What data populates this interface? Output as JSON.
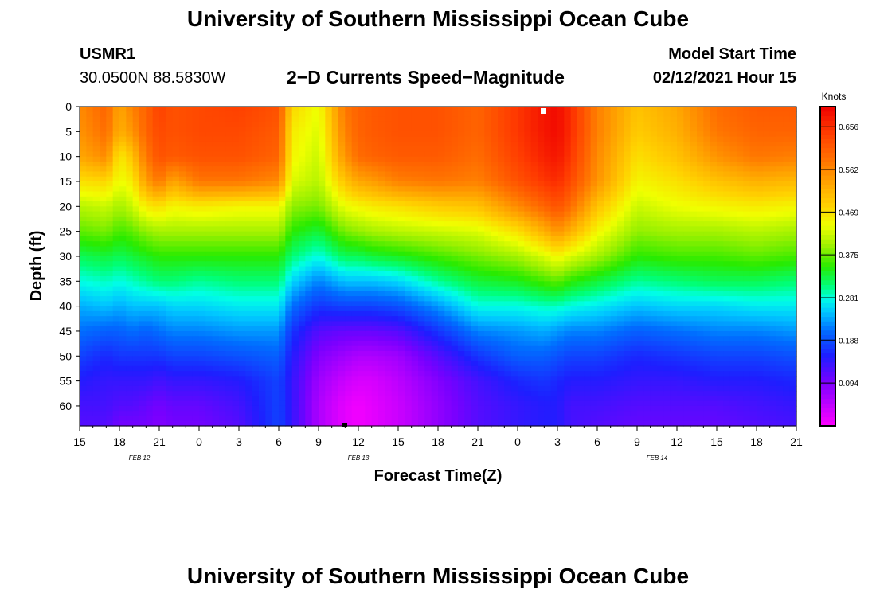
{
  "header": {
    "title_top": "University of Southern Mississippi Ocean Cube",
    "title_bottom": "University of Southern Mississippi Ocean Cube",
    "station_id": "USMR1",
    "coordinates": "30.0500N 88.5830W",
    "subtitle": "2−D Currents Speed−Magnitude",
    "model_start_label": "Model Start Time",
    "model_start_value": "02/12/2021 Hour 15"
  },
  "chart_data": {
    "type": "heatmap",
    "title": "2−D Currents Speed−Magnitude",
    "xlabel": "Forecast Time(Z)",
    "ylabel": "Depth (ft)",
    "x_ticks": [
      "15",
      "18",
      "21",
      "0",
      "3",
      "6",
      "9",
      "12",
      "15",
      "18",
      "21",
      "0",
      "3",
      "6",
      "9",
      "12",
      "15",
      "18",
      "21"
    ],
    "x_hours": [
      0,
      3,
      6,
      9,
      12,
      15,
      18,
      21,
      24,
      27,
      30,
      33,
      36,
      39,
      42,
      45,
      48,
      51,
      54
    ],
    "date_labels": [
      {
        "label": "FEB 12",
        "hour": 4.5
      },
      {
        "label": "FEB 13",
        "hour": 21
      },
      {
        "label": "FEB 14",
        "hour": 43.5
      }
    ],
    "y_ticks": [
      0,
      5,
      10,
      15,
      20,
      25,
      30,
      35,
      40,
      45,
      50,
      55,
      60
    ],
    "ylim": [
      0,
      64
    ],
    "xlim": [
      0,
      54
    ],
    "colorbar": {
      "label": "Knots",
      "ticks": [
        "0.656",
        "0.562",
        "0.469",
        "0.375",
        "0.281",
        "0.188",
        "0.094"
      ],
      "tick_values": [
        0.656,
        0.562,
        0.469,
        0.375,
        0.281,
        0.188,
        0.094
      ],
      "vmin": 0,
      "vmax": 0.7
    },
    "profile_hours": [
      0,
      2,
      3,
      4,
      5,
      6,
      7,
      9,
      12,
      15,
      16,
      18,
      20,
      21,
      22,
      24,
      27,
      30,
      33,
      35,
      36,
      37,
      39,
      42,
      45,
      48,
      51,
      54
    ],
    "profile_depths": [
      0,
      5,
      10,
      15,
      20,
      25,
      30,
      35,
      40,
      45,
      50,
      55,
      60,
      64
    ],
    "speeds": [
      [
        0.56,
        0.55,
        0.53,
        0.47,
        0.41,
        0.37,
        0.32,
        0.28,
        0.24,
        0.21,
        0.18,
        0.15,
        0.13,
        0.12
      ],
      [
        0.6,
        0.59,
        0.56,
        0.48,
        0.42,
        0.38,
        0.33,
        0.29,
        0.25,
        0.2,
        0.16,
        0.14,
        0.13,
        0.12
      ],
      [
        0.53,
        0.52,
        0.46,
        0.44,
        0.4,
        0.36,
        0.32,
        0.28,
        0.24,
        0.2,
        0.17,
        0.14,
        0.12,
        0.1
      ],
      [
        0.57,
        0.55,
        0.5,
        0.46,
        0.42,
        0.37,
        0.33,
        0.29,
        0.25,
        0.21,
        0.17,
        0.14,
        0.12,
        0.1
      ],
      [
        0.6,
        0.6,
        0.58,
        0.54,
        0.46,
        0.39,
        0.34,
        0.3,
        0.25,
        0.2,
        0.17,
        0.14,
        0.11,
        0.1
      ],
      [
        0.64,
        0.63,
        0.62,
        0.58,
        0.47,
        0.4,
        0.35,
        0.31,
        0.25,
        0.21,
        0.17,
        0.13,
        0.1,
        0.09
      ],
      [
        0.62,
        0.62,
        0.61,
        0.53,
        0.45,
        0.4,
        0.35,
        0.31,
        0.26,
        0.22,
        0.18,
        0.14,
        0.11,
        0.1
      ],
      [
        0.63,
        0.63,
        0.62,
        0.58,
        0.46,
        0.4,
        0.35,
        0.3,
        0.26,
        0.22,
        0.18,
        0.14,
        0.11,
        0.1
      ],
      [
        0.64,
        0.63,
        0.62,
        0.58,
        0.45,
        0.4,
        0.35,
        0.31,
        0.27,
        0.23,
        0.19,
        0.15,
        0.13,
        0.12
      ],
      [
        0.62,
        0.61,
        0.6,
        0.56,
        0.45,
        0.4,
        0.35,
        0.31,
        0.27,
        0.23,
        0.2,
        0.18,
        0.18,
        0.18
      ],
      [
        0.48,
        0.46,
        0.45,
        0.43,
        0.39,
        0.35,
        0.31,
        0.26,
        0.21,
        0.17,
        0.15,
        0.14,
        0.14,
        0.14
      ],
      [
        0.44,
        0.43,
        0.42,
        0.41,
        0.38,
        0.33,
        0.28,
        0.22,
        0.17,
        0.12,
        0.09,
        0.07,
        0.06,
        0.06
      ],
      [
        0.58,
        0.57,
        0.55,
        0.5,
        0.44,
        0.38,
        0.32,
        0.25,
        0.18,
        0.11,
        0.07,
        0.04,
        0.02,
        0.02
      ],
      [
        0.6,
        0.6,
        0.59,
        0.53,
        0.45,
        0.39,
        0.32,
        0.25,
        0.18,
        0.11,
        0.06,
        0.03,
        0.01,
        0.01
      ],
      [
        0.61,
        0.61,
        0.6,
        0.54,
        0.46,
        0.4,
        0.33,
        0.25,
        0.18,
        0.11,
        0.06,
        0.03,
        0.02,
        0.02
      ],
      [
        0.62,
        0.62,
        0.61,
        0.57,
        0.47,
        0.41,
        0.34,
        0.26,
        0.19,
        0.12,
        0.07,
        0.05,
        0.04,
        0.04
      ],
      [
        0.62,
        0.62,
        0.61,
        0.58,
        0.49,
        0.42,
        0.36,
        0.3,
        0.23,
        0.17,
        0.12,
        0.09,
        0.08,
        0.08
      ],
      [
        0.6,
        0.6,
        0.59,
        0.57,
        0.5,
        0.43,
        0.38,
        0.33,
        0.28,
        0.22,
        0.17,
        0.13,
        0.12,
        0.12
      ],
      [
        0.65,
        0.65,
        0.64,
        0.62,
        0.56,
        0.47,
        0.4,
        0.34,
        0.28,
        0.23,
        0.2,
        0.16,
        0.14,
        0.14
      ],
      [
        0.68,
        0.68,
        0.67,
        0.65,
        0.6,
        0.52,
        0.43,
        0.36,
        0.29,
        0.24,
        0.2,
        0.17,
        0.15,
        0.15
      ],
      [
        0.69,
        0.69,
        0.68,
        0.66,
        0.62,
        0.55,
        0.45,
        0.37,
        0.29,
        0.23,
        0.19,
        0.16,
        0.15,
        0.15
      ],
      [
        0.66,
        0.66,
        0.65,
        0.63,
        0.59,
        0.52,
        0.43,
        0.35,
        0.28,
        0.22,
        0.18,
        0.15,
        0.13,
        0.13
      ],
      [
        0.57,
        0.57,
        0.56,
        0.55,
        0.5,
        0.45,
        0.4,
        0.33,
        0.27,
        0.22,
        0.18,
        0.15,
        0.13,
        0.12
      ],
      [
        0.5,
        0.49,
        0.47,
        0.45,
        0.42,
        0.39,
        0.35,
        0.3,
        0.25,
        0.2,
        0.16,
        0.14,
        0.12,
        0.11
      ],
      [
        0.53,
        0.52,
        0.5,
        0.47,
        0.44,
        0.4,
        0.36,
        0.31,
        0.26,
        0.21,
        0.17,
        0.14,
        0.12,
        0.11
      ],
      [
        0.59,
        0.58,
        0.55,
        0.5,
        0.45,
        0.4,
        0.36,
        0.32,
        0.26,
        0.22,
        0.18,
        0.15,
        0.12,
        0.11
      ],
      [
        0.61,
        0.6,
        0.58,
        0.52,
        0.46,
        0.41,
        0.37,
        0.32,
        0.27,
        0.22,
        0.18,
        0.15,
        0.13,
        0.12
      ],
      [
        0.61,
        0.6,
        0.57,
        0.51,
        0.45,
        0.4,
        0.36,
        0.31,
        0.27,
        0.23,
        0.19,
        0.16,
        0.14,
        0.13
      ]
    ]
  }
}
